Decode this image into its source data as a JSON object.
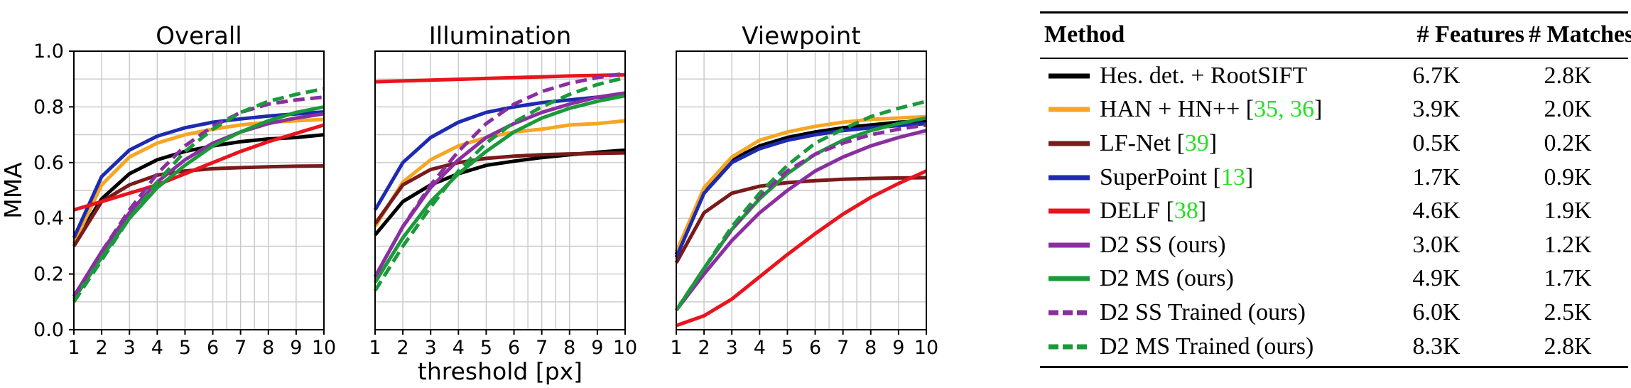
{
  "chart_data": [
    {
      "type": "line",
      "title": "Overall",
      "xlabel": "",
      "ylabel": "MMA",
      "x": [
        1,
        2,
        3,
        4,
        5,
        6,
        7,
        8,
        9,
        10
      ],
      "xlim": [
        1,
        10
      ],
      "ylim": [
        0,
        1
      ],
      "xticks": [
        "1",
        "2",
        "3",
        "4",
        "5",
        "6",
        "7",
        "8",
        "9",
        "10"
      ],
      "yticks": [
        "0.0",
        "0.2",
        "0.4",
        "0.6",
        "0.8",
        "1.0"
      ],
      "grid": true,
      "series": [
        {
          "name": "Hes. det. + RootSIFT",
          "color": "#000000",
          "dashed": false,
          "values": [
            0.31,
            0.47,
            0.56,
            0.61,
            0.64,
            0.66,
            0.675,
            0.685,
            0.69,
            0.7
          ]
        },
        {
          "name": "HAN + HN++ [35, 36]",
          "color": "#f5a623",
          "dashed": false,
          "values": [
            0.31,
            0.52,
            0.62,
            0.67,
            0.7,
            0.72,
            0.735,
            0.745,
            0.75,
            0.755
          ]
        },
        {
          "name": "LF-Net [39]",
          "color": "#7a1a1a",
          "dashed": false,
          "values": [
            0.3,
            0.46,
            0.52,
            0.555,
            0.57,
            0.578,
            0.582,
            0.585,
            0.587,
            0.588
          ]
        },
        {
          "name": "SuperPoint [13]",
          "color": "#1e2ab0",
          "dashed": false,
          "values": [
            0.33,
            0.55,
            0.645,
            0.695,
            0.725,
            0.745,
            0.757,
            0.767,
            0.775,
            0.782
          ]
        },
        {
          "name": "DELF [38]",
          "color": "#e8141e",
          "dashed": false,
          "values": [
            0.43,
            0.46,
            0.49,
            0.52,
            0.56,
            0.6,
            0.64,
            0.675,
            0.705,
            0.735
          ]
        },
        {
          "name": "D2 SS (ours)",
          "color": "#8a2ea0",
          "dashed": false,
          "values": [
            0.12,
            0.28,
            0.42,
            0.53,
            0.61,
            0.67,
            0.71,
            0.74,
            0.76,
            0.775
          ]
        },
        {
          "name": "D2 MS (ours)",
          "color": "#1a9a3a",
          "dashed": false,
          "values": [
            0.11,
            0.26,
            0.4,
            0.51,
            0.59,
            0.66,
            0.71,
            0.75,
            0.78,
            0.8
          ]
        },
        {
          "name": "D2 SS Trained (ours)",
          "color": "#8a2ea0",
          "dashed": true,
          "values": [
            0.12,
            0.28,
            0.43,
            0.56,
            0.66,
            0.73,
            0.78,
            0.81,
            0.825,
            0.835
          ]
        },
        {
          "name": "D2 MS Trained (ours)",
          "color": "#1a9a3a",
          "dashed": true,
          "values": [
            0.1,
            0.25,
            0.4,
            0.53,
            0.64,
            0.72,
            0.78,
            0.82,
            0.845,
            0.865
          ]
        }
      ]
    },
    {
      "type": "line",
      "title": "Illumination",
      "xlabel": "threshold [px]",
      "ylabel": "",
      "x": [
        1,
        2,
        3,
        4,
        5,
        6,
        7,
        8,
        9,
        10
      ],
      "xlim": [
        1,
        10
      ],
      "ylim": [
        0,
        1
      ],
      "xticks": [
        "1",
        "2",
        "3",
        "4",
        "5",
        "6",
        "7",
        "8",
        "9",
        "10"
      ],
      "grid": true,
      "series": [
        {
          "name": "Hes. det. + RootSIFT",
          "color": "#000000",
          "dashed": false,
          "values": [
            0.34,
            0.46,
            0.52,
            0.56,
            0.59,
            0.605,
            0.618,
            0.628,
            0.637,
            0.645
          ]
        },
        {
          "name": "HAN + HN++ [35, 36]",
          "color": "#f5a623",
          "dashed": false,
          "values": [
            0.37,
            0.53,
            0.61,
            0.66,
            0.69,
            0.71,
            0.72,
            0.735,
            0.74,
            0.75
          ]
        },
        {
          "name": "LF-Net [39]",
          "color": "#7a1a1a",
          "dashed": false,
          "values": [
            0.38,
            0.52,
            0.575,
            0.6,
            0.615,
            0.623,
            0.628,
            0.631,
            0.633,
            0.635
          ]
        },
        {
          "name": "SuperPoint [13]",
          "color": "#1e2ab0",
          "dashed": false,
          "values": [
            0.43,
            0.6,
            0.69,
            0.745,
            0.78,
            0.8,
            0.815,
            0.825,
            0.835,
            0.84
          ]
        },
        {
          "name": "DELF [38]",
          "color": "#e8141e",
          "dashed": false,
          "values": [
            0.89,
            0.893,
            0.896,
            0.899,
            0.902,
            0.905,
            0.908,
            0.911,
            0.913,
            0.915
          ]
        },
        {
          "name": "D2 SS (ours)",
          "color": "#8a2ea0",
          "dashed": false,
          "values": [
            0.19,
            0.37,
            0.51,
            0.61,
            0.69,
            0.74,
            0.78,
            0.81,
            0.835,
            0.85
          ]
        },
        {
          "name": "D2 MS (ours)",
          "color": "#1a9a3a",
          "dashed": false,
          "values": [
            0.17,
            0.33,
            0.46,
            0.56,
            0.64,
            0.71,
            0.76,
            0.795,
            0.82,
            0.84
          ]
        },
        {
          "name": "D2 SS Trained (ours)",
          "color": "#8a2ea0",
          "dashed": true,
          "values": [
            0.19,
            0.37,
            0.52,
            0.64,
            0.74,
            0.81,
            0.855,
            0.885,
            0.905,
            0.92
          ]
        },
        {
          "name": "D2 MS Trained (ours)",
          "color": "#1a9a3a",
          "dashed": true,
          "values": [
            0.14,
            0.3,
            0.44,
            0.57,
            0.67,
            0.745,
            0.8,
            0.845,
            0.88,
            0.905
          ]
        }
      ]
    },
    {
      "type": "line",
      "title": "Viewpoint",
      "xlabel": "",
      "ylabel": "",
      "x": [
        1,
        2,
        3,
        4,
        5,
        6,
        7,
        8,
        9,
        10
      ],
      "xlim": [
        1,
        10
      ],
      "ylim": [
        0,
        1
      ],
      "xticks": [
        "1",
        "2",
        "3",
        "4",
        "5",
        "6",
        "7",
        "8",
        "9",
        "10"
      ],
      "grid": true,
      "series": [
        {
          "name": "Hes. det. + RootSIFT",
          "color": "#000000",
          "dashed": false,
          "values": [
            0.27,
            0.5,
            0.61,
            0.66,
            0.69,
            0.71,
            0.725,
            0.735,
            0.745,
            0.75
          ]
        },
        {
          "name": "HAN + HN++ [35, 36]",
          "color": "#f5a623",
          "dashed": false,
          "values": [
            0.28,
            0.51,
            0.62,
            0.68,
            0.71,
            0.73,
            0.745,
            0.755,
            0.76,
            0.765
          ]
        },
        {
          "name": "LF-Net [39]",
          "color": "#7a1a1a",
          "dashed": false,
          "values": [
            0.24,
            0.42,
            0.49,
            0.515,
            0.528,
            0.535,
            0.54,
            0.543,
            0.545,
            0.546
          ]
        },
        {
          "name": "SuperPoint [13]",
          "color": "#1e2ab0",
          "dashed": false,
          "values": [
            0.26,
            0.49,
            0.6,
            0.65,
            0.68,
            0.7,
            0.715,
            0.725,
            0.733,
            0.74
          ]
        },
        {
          "name": "DELF [38]",
          "color": "#e8141e",
          "dashed": false,
          "values": [
            0.015,
            0.05,
            0.11,
            0.19,
            0.27,
            0.345,
            0.415,
            0.475,
            0.525,
            0.57
          ]
        },
        {
          "name": "D2 SS (ours)",
          "color": "#8a2ea0",
          "dashed": false,
          "values": [
            0.07,
            0.2,
            0.32,
            0.42,
            0.5,
            0.57,
            0.62,
            0.66,
            0.69,
            0.715
          ]
        },
        {
          "name": "D2 MS (ours)",
          "color": "#1a9a3a",
          "dashed": false,
          "values": [
            0.07,
            0.22,
            0.36,
            0.47,
            0.56,
            0.63,
            0.68,
            0.715,
            0.74,
            0.76
          ]
        },
        {
          "name": "D2 SS Trained (ours)",
          "color": "#8a2ea0",
          "dashed": true,
          "values": [
            0.07,
            0.22,
            0.36,
            0.48,
            0.57,
            0.63,
            0.67,
            0.7,
            0.72,
            0.735
          ]
        },
        {
          "name": "D2 MS Trained (ours)",
          "color": "#1a9a3a",
          "dashed": true,
          "values": [
            0.07,
            0.22,
            0.37,
            0.49,
            0.59,
            0.67,
            0.72,
            0.765,
            0.795,
            0.82
          ]
        }
      ]
    }
  ],
  "table": {
    "headers": {
      "method": "Method",
      "features": "# Features",
      "matches": "# Matches"
    },
    "rows": [
      {
        "name": "Hes. det. + RootSIFT",
        "cite": "",
        "suffix": "",
        "features": "6.7K",
        "matches": "2.8K",
        "color": "#000000",
        "dashed": false
      },
      {
        "name": "HAN + HN++ [",
        "cite": "35, 36",
        "suffix": "]",
        "features": "3.9K",
        "matches": "2.0K",
        "color": "#f5a623",
        "dashed": false
      },
      {
        "name": "LF-Net [",
        "cite": "39",
        "suffix": "]",
        "features": "0.5K",
        "matches": "0.2K",
        "color": "#7a1a1a",
        "dashed": false
      },
      {
        "name": "SuperPoint [",
        "cite": "13",
        "suffix": "]",
        "features": "1.7K",
        "matches": "0.9K",
        "color": "#1e2ab0",
        "dashed": false
      },
      {
        "name": "DELF [",
        "cite": "38",
        "suffix": "]",
        "features": "4.6K",
        "matches": "1.9K",
        "color": "#e8141e",
        "dashed": false
      },
      {
        "name": "D2 SS (ours)",
        "cite": "",
        "suffix": "",
        "features": "3.0K",
        "matches": "1.2K",
        "color": "#8a2ea0",
        "dashed": false
      },
      {
        "name": "D2 MS (ours)",
        "cite": "",
        "suffix": "",
        "features": "4.9K",
        "matches": "1.7K",
        "color": "#1a9a3a",
        "dashed": false
      },
      {
        "name": "D2 SS Trained (ours)",
        "cite": "",
        "suffix": "",
        "features": "6.0K",
        "matches": "2.5K",
        "color": "#8a2ea0",
        "dashed": true
      },
      {
        "name": "D2 MS Trained (ours)",
        "cite": "",
        "suffix": "",
        "features": "8.3K",
        "matches": "2.8K",
        "color": "#1a9a3a",
        "dashed": true
      }
    ]
  }
}
